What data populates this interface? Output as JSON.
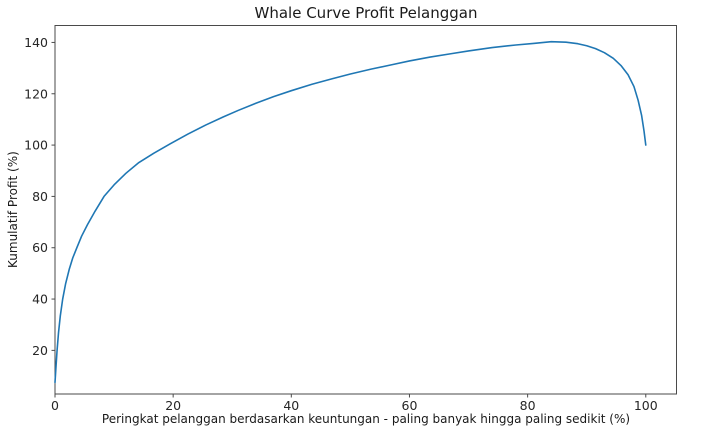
{
  "chart_data": {
    "type": "line",
    "title": "Whale Curve Profit Pelanggan",
    "xlabel": "Peringkat pelanggan berdasarkan keuntungan - paling banyak hingga paling sedikit (%)",
    "ylabel": "Kumulatif Profit (%)",
    "x_ticks": [
      0,
      20,
      40,
      60,
      80,
      100
    ],
    "y_ticks": [
      20,
      40,
      60,
      80,
      100,
      120,
      140
    ],
    "xlim": [
      0,
      105.2
    ],
    "ylim": [
      3.0,
      146.6
    ],
    "grid": false,
    "legend_position": "none",
    "line_color": "#1f77b4",
    "spine_color": "#4a4a4a",
    "series": [
      {
        "name": "Kumulatif Profit (%)",
        "x": [
          0,
          0.15,
          0.35,
          0.6,
          0.9,
          1.3,
          1.8,
          2.4,
          3.0,
          3.7,
          4.5,
          5.5,
          6.8,
          8.3,
          10,
          12,
          14.2,
          16.7,
          19.5,
          22.5,
          25.5,
          28.5,
          31,
          34,
          37,
          40,
          43.5,
          47,
          50,
          53.5,
          57,
          60,
          63.5,
          67,
          70,
          74,
          78,
          81,
          84,
          86.5,
          88.5,
          90,
          91.5,
          93,
          94.5,
          95.8,
          97,
          98,
          98.7,
          99.3,
          99.7,
          100
        ],
        "y": [
          7.5,
          13,
          20,
          27,
          33.5,
          40,
          46,
          51.5,
          56,
          60,
          64.5,
          69,
          74.3,
          80,
          84.5,
          89,
          93.2,
          96.8,
          100.5,
          104.3,
          107.8,
          111,
          113.5,
          116.3,
          118.9,
          121.2,
          123.7,
          125.9,
          127.7,
          129.6,
          131.3,
          132.8,
          134.3,
          135.6,
          136.7,
          138,
          139,
          139.6,
          140.3,
          140.1,
          139.5,
          138.7,
          137.6,
          136,
          133.8,
          131,
          127.4,
          122.8,
          117.5,
          111.5,
          105.5,
          100
        ]
      }
    ]
  }
}
